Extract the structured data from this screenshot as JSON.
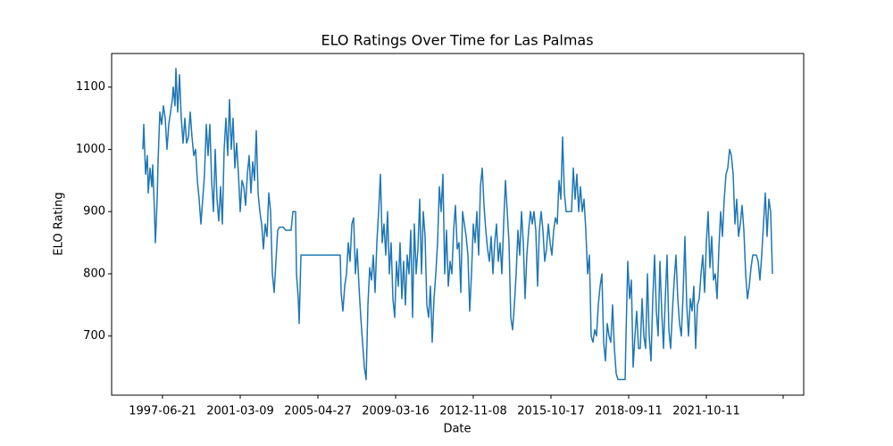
{
  "chart_data": {
    "type": "line",
    "title": "ELO Ratings Over Time for Las Palmas",
    "x_label": "Date",
    "y_label": "ELO Rating",
    "x": [
      0,
      1,
      3,
      5,
      6,
      8,
      10,
      11,
      13,
      14,
      16,
      17,
      19,
      21,
      23,
      25,
      27,
      29,
      31,
      33,
      34,
      36,
      37,
      39,
      41,
      43,
      45,
      47,
      49,
      51,
      53,
      55,
      57,
      59,
      61,
      63,
      65,
      67,
      69,
      71,
      73,
      75,
      77,
      79,
      81,
      83,
      85,
      87,
      89,
      91,
      93,
      95,
      97,
      99,
      101,
      103,
      105,
      107,
      109,
      111,
      113,
      115,
      117,
      119,
      121,
      123,
      125,
      127,
      129,
      131,
      133,
      135,
      137,
      139,
      141,
      143,
      145,
      147,
      149,
      151,
      153,
      157,
      160,
      166,
      168,
      171,
      172,
      174,
      175,
      177,
      181,
      200,
      221,
      222,
      224,
      226,
      228,
      230,
      232,
      234,
      236,
      238,
      240,
      242,
      244,
      246,
      248,
      250,
      252,
      254,
      256,
      258,
      260,
      262,
      264,
      266,
      268,
      270,
      272,
      274,
      276,
      278,
      280,
      282,
      284,
      286,
      288,
      290,
      292,
      294,
      296,
      298,
      300,
      302,
      304,
      306,
      308,
      310,
      312,
      314,
      316,
      318,
      320,
      322,
      324,
      326,
      328,
      330,
      332,
      334,
      336,
      338,
      340,
      342,
      344,
      346,
      348,
      350,
      352,
      354,
      356,
      358,
      360,
      362,
      364,
      366,
      368,
      370,
      372,
      374,
      376,
      378,
      380,
      382,
      384,
      386,
      388,
      390,
      392,
      394,
      396,
      398,
      400,
      402,
      404,
      406,
      408,
      410,
      412,
      414,
      416,
      418,
      420,
      422,
      424,
      426,
      428,
      430,
      432,
      434,
      436,
      438,
      440,
      442,
      444,
      446,
      448,
      450,
      452,
      454,
      456,
      458,
      460,
      462,
      464,
      466,
      468,
      470,
      472,
      474,
      476,
      480,
      482,
      484,
      486,
      488,
      490,
      492,
      494,
      496,
      498,
      500,
      502,
      504,
      506,
      508,
      510,
      512,
      514,
      516,
      518,
      520,
      522,
      524,
      526,
      528,
      530,
      532,
      540,
      541,
      543,
      545,
      547,
      549,
      551,
      553,
      555,
      557,
      559,
      561,
      563,
      565,
      567,
      569,
      571,
      573,
      575,
      577,
      579,
      581,
      583,
      585,
      587,
      589,
      591,
      593,
      595,
      597,
      599,
      601,
      603,
      605,
      607,
      609,
      611,
      613,
      615,
      617,
      619,
      621,
      623,
      625,
      627,
      629,
      631,
      633,
      635,
      637,
      639,
      641,
      643,
      645,
      647,
      649,
      651,
      653,
      655,
      657,
      659,
      661,
      663,
      665,
      667,
      669,
      671,
      673,
      675,
      677,
      679,
      681,
      683,
      685,
      687,
      689,
      691,
      693,
      695,
      697,
      699,
      701,
      703,
      705
    ],
    "series": [
      {
        "name": "ELO",
        "color": "#1f77b4",
        "values": [
          1000,
          1040,
          960,
          990,
          930,
          970,
          940,
          975,
          900,
          850,
          920,
          980,
          1060,
          1040,
          1070,
          1050,
          1000,
          1040,
          1060,
          1080,
          1100,
          1070,
          1130,
          1060,
          1120,
          1050,
          1010,
          1050,
          1010,
          1020,
          1060,
          1020,
          990,
          1000,
          950,
          920,
          880,
          920,
          960,
          1040,
          990,
          1040,
          950,
          900,
          1000,
          920,
          885,
          940,
          880,
          1000,
          1050,
          990,
          1080,
          1000,
          1050,
          970,
          1010,
          960,
          900,
          950,
          940,
          910,
          960,
          990,
          930,
          980,
          950,
          1030,
          930,
          900,
          880,
          840,
          880,
          860,
          930,
          900,
          800,
          770,
          820,
          870,
          875,
          875,
          870,
          870,
          900,
          900,
          800,
          760,
          720,
          830,
          830,
          830,
          830,
          770,
          740,
          780,
          800,
          850,
          820,
          880,
          890,
          800,
          840,
          780,
          730,
          690,
          650,
          630,
          750,
          810,
          790,
          830,
          770,
          850,
          900,
          960,
          850,
          880,
          830,
          900,
          800,
          850,
          760,
          730,
          820,
          780,
          850,
          760,
          820,
          750,
          830,
          800,
          870,
          730,
          880,
          800,
          840,
          920,
          800,
          900,
          860,
          750,
          730,
          780,
          690,
          760,
          800,
          850,
          940,
          900,
          960,
          800,
          870,
          780,
          820,
          800,
          870,
          910,
          840,
          850,
          770,
          900,
          880,
          860,
          830,
          740,
          800,
          880,
          850,
          900,
          830,
          940,
          970,
          910,
          870,
          840,
          820,
          860,
          800,
          850,
          880,
          820,
          850,
          800,
          880,
          950,
          900,
          850,
          730,
          710,
          750,
          800,
          870,
          830,
          900,
          850,
          760,
          830,
          870,
          900,
          880,
          900,
          870,
          780,
          870,
          900,
          870,
          820,
          840,
          880,
          850,
          830,
          870,
          890,
          880,
          950,
          920,
          1020,
          930,
          900,
          900,
          900,
          970,
          920,
          960,
          900,
          940,
          900,
          920,
          870,
          800,
          830,
          700,
          690,
          710,
          700,
          750,
          780,
          800,
          690,
          660,
          720,
          700,
          690,
          750,
          680,
          640,
          630,
          630,
          700,
          820,
          760,
          790,
          650,
          700,
          740,
          680,
          680,
          760,
          700,
          680,
          800,
          700,
          660,
          760,
          830,
          740,
          700,
          820,
          740,
          680,
          760,
          830,
          710,
          680,
          740,
          790,
          830,
          760,
          720,
          700,
          770,
          860,
          750,
          700,
          760,
          740,
          780,
          680,
          750,
          760,
          800,
          830,
          770,
          850,
          900,
          810,
          860,
          790,
          800,
          760,
          840,
          900,
          860,
          920,
          960,
          970,
          1000,
          990,
          960,
          880,
          920,
          860,
          880,
          910,
          870,
          800,
          760,
          780,
          810,
          830,
          830,
          830,
          820,
          790,
          830,
          880,
          930,
          860,
          920,
          900,
          800
        ]
      }
    ],
    "xlim": [
      -35,
      740
    ],
    "xticks": [
      {
        "value": 22,
        "label": "1997-06-21"
      },
      {
        "value": 109,
        "label": "2001-03-09"
      },
      {
        "value": 196,
        "label": "2005-04-27"
      },
      {
        "value": 283,
        "label": "2009-03-16"
      },
      {
        "value": 370,
        "label": "2012-11-08"
      },
      {
        "value": 457,
        "label": "2015-10-17"
      },
      {
        "value": 544,
        "label": "2018-09-11"
      },
      {
        "value": 631,
        "label": "2021-10-11"
      },
      {
        "value": 717,
        "label": null
      }
    ],
    "ylim": [
      605,
      1154
    ],
    "yticks": [
      700,
      800,
      900,
      1000,
      1100
    ]
  }
}
